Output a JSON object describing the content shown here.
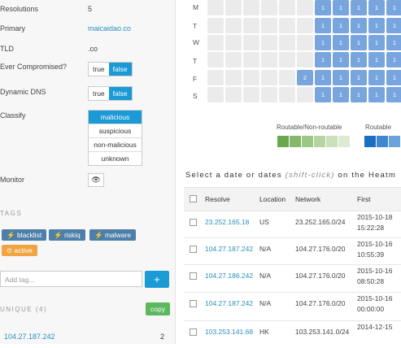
{
  "summary": {
    "resolutions_label": "Resolutions",
    "resolutions_value": "5",
    "primary_label": "Primary",
    "primary_value": "maicaidao.co",
    "tld_label": "TLD",
    "tld_value": ".co",
    "compromised_label": "Ever Compromised?",
    "dyndns_label": "Dynamic DNS",
    "toggle_true": "true",
    "toggle_false": "false",
    "classify_label": "Classify",
    "classify_options": [
      "malicious",
      "suspicious",
      "non-malicious",
      "unknown"
    ],
    "monitor_label": "Monitor",
    "eye_icon": "👁"
  },
  "tags": {
    "heading": "TAGS",
    "items": [
      "blacklist",
      "riskiq",
      "malware"
    ],
    "active_label": "active",
    "add_placeholder": "Add tag...",
    "add_button": "+"
  },
  "unique": {
    "heading": "UNIQUE (4)",
    "copy_label": "copy",
    "first_ip": "104.27.187.242",
    "first_count": "2"
  },
  "heatmap": {
    "days": [
      "M",
      "T",
      "W",
      "T",
      "F",
      "S"
    ],
    "cell_value": "1",
    "f_value": "2",
    "legend_left": "Routable/Non-routable",
    "legend_right": "Routable"
  },
  "instruction": {
    "prefix": "Select a date or dates",
    "hint": "(shift-click)",
    "suffix": "on the Heatm"
  },
  "table": {
    "headers": [
      "Resolve",
      "Location",
      "Network",
      "First"
    ],
    "rows": [
      {
        "ip": "23.252.165.18",
        "loc": "US",
        "net": "23.252.165.0/24",
        "d1": "2015-10-18",
        "d2": "15:22:28"
      },
      {
        "ip": "104.27.187.242",
        "loc": "N/A",
        "net": "104.27.176.0/20",
        "d1": "2015-10-16",
        "d2": "10:55:39"
      },
      {
        "ip": "104.27.186.242",
        "loc": "N/A",
        "net": "104.27.176.0/20",
        "d1": "2015-10-16",
        "d2": "08:50:28"
      },
      {
        "ip": "104.27.187.242",
        "loc": "N/A",
        "net": "104.27.176.0/20",
        "d1": "2015-10-16",
        "d2": "00:00:00"
      },
      {
        "ip": "103.253.141.68",
        "loc": "HK",
        "net": "103.253.141.0/24",
        "d1": "2014-12-15",
        "d2": ""
      }
    ]
  },
  "colors": {
    "accent": "#1b9ad6",
    "heat_blue": "#78a5dd",
    "green": "#5cb85c",
    "orange": "#f0a543"
  }
}
